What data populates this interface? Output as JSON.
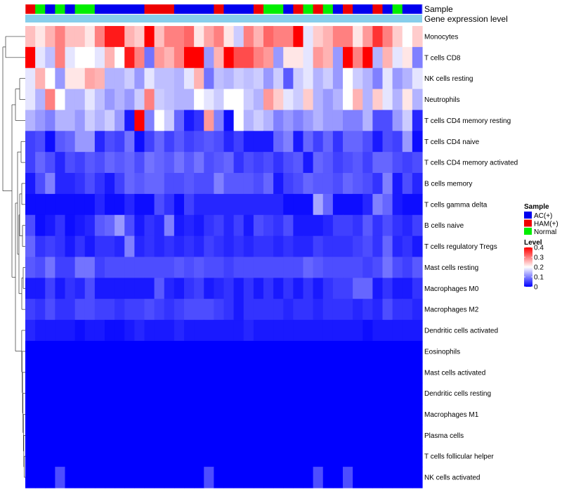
{
  "chart_data": {
    "type": "heatmap",
    "annotation_tracks": [
      {
        "name": "Sample"
      },
      {
        "name": "Gene expression level"
      }
    ],
    "sample_groups": [
      "HAM(+)",
      "Normal",
      "AC(+)",
      "Normal",
      "AC(+)",
      "Normal",
      "Normal",
      "AC(+)",
      "AC(+)",
      "AC(+)",
      "AC(+)",
      "AC(+)",
      "HAM(+)",
      "HAM(+)",
      "HAM(+)",
      "AC(+)",
      "AC(+)",
      "AC(+)",
      "AC(+)",
      "HAM(+)",
      "AC(+)",
      "AC(+)",
      "AC(+)",
      "HAM(+)",
      "Normal",
      "Normal",
      "AC(+)",
      "HAM(+)",
      "Normal",
      "HAM(+)",
      "Normal",
      "AC(+)",
      "HAM(+)",
      "AC(+)",
      "AC(+)",
      "HAM(+)",
      "AC(+)",
      "Normal",
      "AC(+)",
      "AC(+)"
    ],
    "group_colors": {
      "AC(+)": "#0000ee",
      "HAM(+)": "#ee0000",
      "Normal": "#00ee00"
    },
    "expression_level_color": "#87ceeb",
    "rows": [
      "Monocytes",
      "T cells CD8",
      "NK cells resting",
      "Neutrophils",
      "T cells CD4 memory resting",
      "T cells CD4 naive",
      "T cells CD4 memory activated",
      "B cells memory",
      "T cells gamma delta",
      "B cells naive",
      "T cells regulatory  Tregs",
      "Mast cells resting",
      "Macrophages M0",
      "Macrophages M2",
      "Dendritic cells activated",
      "Eosinophils",
      "Mast cells activated",
      "Dendritic cells resting",
      "Macrophages M1",
      "Plasma cells",
      "T cells follicular helper",
      "NK cells activated"
    ],
    "values": [
      [
        0.25,
        0.22,
        0.26,
        0.3,
        0.25,
        0.25,
        0.22,
        0.3,
        0.38,
        0.38,
        0.26,
        0.24,
        0.4,
        0.25,
        0.3,
        0.3,
        0.32,
        0.22,
        0.27,
        0.3,
        0.22,
        0.16,
        0.3,
        0.26,
        0.32,
        0.3,
        0.3,
        0.4,
        0.18,
        0.24,
        0.26,
        0.3,
        0.3,
        0.22,
        0.28,
        0.36,
        0.3,
        0.24,
        0.2,
        0.24
      ],
      [
        0.4,
        0.18,
        0.15,
        0.3,
        0.18,
        0.2,
        0.2,
        0.18,
        0.26,
        0.2,
        0.38,
        0.3,
        0.09,
        0.28,
        0.26,
        0.3,
        0.4,
        0.4,
        0.12,
        0.26,
        0.4,
        0.34,
        0.34,
        0.3,
        0.28,
        0.12,
        0.22,
        0.22,
        0.18,
        0.28,
        0.26,
        0.12,
        0.4,
        0.3,
        0.4,
        0.14,
        0.26,
        0.18,
        0.22,
        0.1
      ],
      [
        0.18,
        0.26,
        0.2,
        0.12,
        0.22,
        0.22,
        0.27,
        0.26,
        0.14,
        0.14,
        0.16,
        0.12,
        0.18,
        0.15,
        0.15,
        0.14,
        0.18,
        0.26,
        0.09,
        0.15,
        0.14,
        0.16,
        0.15,
        0.16,
        0.12,
        0.16,
        0.07,
        0.16,
        0.18,
        0.14,
        0.16,
        0.12,
        0.2,
        0.16,
        0.14,
        0.1,
        0.18,
        0.12,
        0.14,
        0.18
      ],
      [
        0.18,
        0.14,
        0.3,
        0.2,
        0.14,
        0.14,
        0.18,
        0.15,
        0.12,
        0.14,
        0.12,
        0.16,
        0.3,
        0.16,
        0.15,
        0.14,
        0.14,
        0.2,
        0.18,
        0.16,
        0.2,
        0.2,
        0.16,
        0.14,
        0.28,
        0.24,
        0.18,
        0.16,
        0.24,
        0.14,
        0.12,
        0.14,
        0.2,
        0.26,
        0.14,
        0.24,
        0.18,
        0.14,
        0.22,
        0.14
      ],
      [
        0.14,
        0.12,
        0.1,
        0.14,
        0.14,
        0.12,
        0.16,
        0.14,
        0.16,
        0.12,
        0.02,
        0.4,
        0.1,
        0.2,
        0.16,
        0.08,
        0.02,
        0.04,
        0.28,
        0.1,
        0.01,
        0.2,
        0.14,
        0.16,
        0.14,
        0.1,
        0.12,
        0.1,
        0.12,
        0.14,
        0.12,
        0.12,
        0.1,
        0.1,
        0.14,
        0.06,
        0.06,
        0.12,
        0.16,
        0.03
      ],
      [
        0.05,
        0.06,
        0.01,
        0.07,
        0.08,
        0.12,
        0.12,
        0.03,
        0.06,
        0.05,
        0.09,
        0.01,
        0.05,
        0.08,
        0.05,
        0.07,
        0.05,
        0.06,
        0.07,
        0.06,
        0.03,
        0.05,
        0.02,
        0.02,
        0.02,
        0.08,
        0.1,
        0.02,
        0.08,
        0.05,
        0.08,
        0.04,
        0.08,
        0.08,
        0.06,
        0.02,
        0.06,
        0.05,
        0.12,
        0.01
      ],
      [
        0.05,
        0.08,
        0.06,
        0.03,
        0.06,
        0.05,
        0.07,
        0.06,
        0.08,
        0.07,
        0.08,
        0.06,
        0.09,
        0.08,
        0.07,
        0.09,
        0.07,
        0.09,
        0.06,
        0.07,
        0.08,
        0.04,
        0.06,
        0.05,
        0.06,
        0.04,
        0.06,
        0.07,
        0.02,
        0.08,
        0.07,
        0.05,
        0.06,
        0.07,
        0.05,
        0.08,
        0.08,
        0.06,
        0.05,
        0.06
      ],
      [
        0.02,
        0.06,
        0.1,
        0.03,
        0.03,
        0.04,
        0.06,
        0.04,
        0.02,
        0.05,
        0.08,
        0.07,
        0.08,
        0.08,
        0.06,
        0.06,
        0.07,
        0.06,
        0.06,
        0.1,
        0.07,
        0.07,
        0.07,
        0.06,
        0.08,
        0.02,
        0.05,
        0.06,
        0.08,
        0.07,
        0.07,
        0.06,
        0.08,
        0.07,
        0.06,
        0.04,
        0.1,
        0.02,
        0.06,
        0.03
      ],
      [
        0.01,
        0.01,
        0.01,
        0.01,
        0.01,
        0.01,
        0.01,
        0.03,
        0.01,
        0.01,
        0.03,
        0.01,
        0.01,
        0.06,
        0.04,
        0.01,
        0.05,
        0.03,
        0.03,
        0.03,
        0.03,
        0.03,
        0.03,
        0.03,
        0.03,
        0.03,
        0.01,
        0.01,
        0.01,
        0.13,
        0.08,
        0.01,
        0.01,
        0.01,
        0.03,
        0.1,
        0.08,
        0.02,
        0.01,
        0.01
      ],
      [
        0.06,
        0.01,
        0.02,
        0.04,
        0.01,
        0.02,
        0.03,
        0.07,
        0.08,
        0.12,
        0.06,
        0.02,
        0.04,
        0.03,
        0.1,
        0.02,
        0.03,
        0.02,
        0.04,
        0.05,
        0.03,
        0.05,
        0.02,
        0.06,
        0.05,
        0.04,
        0.06,
        0.02,
        0.02,
        0.02,
        0.03,
        0.05,
        0.05,
        0.04,
        0.07,
        0.04,
        0.06,
        0.04,
        0.03,
        0.05
      ],
      [
        0.08,
        0.04,
        0.05,
        0.04,
        0.02,
        0.04,
        0.02,
        0.04,
        0.04,
        0.03,
        0.1,
        0.03,
        0.04,
        0.03,
        0.04,
        0.03,
        0.04,
        0.03,
        0.05,
        0.04,
        0.03,
        0.04,
        0.03,
        0.04,
        0.04,
        0.03,
        0.04,
        0.03,
        0.03,
        0.05,
        0.04,
        0.04,
        0.04,
        0.05,
        0.06,
        0.04,
        0.08,
        0.03,
        0.04,
        0.02
      ],
      [
        0.07,
        0.06,
        0.09,
        0.05,
        0.05,
        0.09,
        0.09,
        0.05,
        0.06,
        0.06,
        0.06,
        0.06,
        0.06,
        0.06,
        0.06,
        0.07,
        0.06,
        0.07,
        0.06,
        0.06,
        0.05,
        0.06,
        0.06,
        0.06,
        0.06,
        0.06,
        0.06,
        0.06,
        0.08,
        0.07,
        0.06,
        0.06,
        0.06,
        0.06,
        0.05,
        0.06,
        0.09,
        0.06,
        0.05,
        0.07
      ],
      [
        0.02,
        0.02,
        0.05,
        0.02,
        0.04,
        0.03,
        0.06,
        0.02,
        0.02,
        0.02,
        0.02,
        0.02,
        0.02,
        0.07,
        0.03,
        0.02,
        0.04,
        0.05,
        0.02,
        0.03,
        0.04,
        0.02,
        0.04,
        0.02,
        0.04,
        0.02,
        0.04,
        0.02,
        0.04,
        0.02,
        0.04,
        0.05,
        0.05,
        0.08,
        0.08,
        0.02,
        0.04,
        0.02,
        0.02,
        0.04
      ],
      [
        0.05,
        0.04,
        0.06,
        0.04,
        0.04,
        0.06,
        0.06,
        0.05,
        0.05,
        0.04,
        0.05,
        0.05,
        0.06,
        0.05,
        0.04,
        0.05,
        0.06,
        0.06,
        0.06,
        0.05,
        0.04,
        0.02,
        0.04,
        0.04,
        0.04,
        0.04,
        0.03,
        0.04,
        0.04,
        0.03,
        0.04,
        0.04,
        0.04,
        0.03,
        0.04,
        0.03,
        0.06,
        0.04,
        0.04,
        0.03
      ],
      [
        0.03,
        0.02,
        0.02,
        0.02,
        0.02,
        0.01,
        0.02,
        0.02,
        0.01,
        0.01,
        0.02,
        0.03,
        0.02,
        0.02,
        0.02,
        0.03,
        0.02,
        0.02,
        0.02,
        0.02,
        0.02,
        0.02,
        0.03,
        0.02,
        0.02,
        0.02,
        0.02,
        0.02,
        0.02,
        0.02,
        0.02,
        0.02,
        0.02,
        0.02,
        0.01,
        0.02,
        0.02,
        0.02,
        0.02,
        0.02
      ],
      [
        0.0,
        0.0,
        0.0,
        0.0,
        0.0,
        0.0,
        0.0,
        0.0,
        0.0,
        0.0,
        0.0,
        0.0,
        0.0,
        0.0,
        0.0,
        0.0,
        0.0,
        0.0,
        0.0,
        0.0,
        0.0,
        0.0,
        0.0,
        0.0,
        0.0,
        0.0,
        0.0,
        0.0,
        0.0,
        0.0,
        0.0,
        0.0,
        0.0,
        0.0,
        0.0,
        0.0,
        0.0,
        0.0,
        0.0,
        0.0
      ],
      [
        0.0,
        0.0,
        0.0,
        0.0,
        0.0,
        0.0,
        0.0,
        0.0,
        0.0,
        0.0,
        0.0,
        0.0,
        0.0,
        0.0,
        0.0,
        0.0,
        0.0,
        0.0,
        0.0,
        0.0,
        0.0,
        0.0,
        0.0,
        0.0,
        0.0,
        0.0,
        0.0,
        0.0,
        0.0,
        0.0,
        0.0,
        0.0,
        0.0,
        0.0,
        0.0,
        0.0,
        0.0,
        0.0,
        0.0,
        0.0
      ],
      [
        0.0,
        0.0,
        0.0,
        0.0,
        0.0,
        0.0,
        0.0,
        0.0,
        0.0,
        0.0,
        0.0,
        0.0,
        0.0,
        0.0,
        0.0,
        0.0,
        0.0,
        0.0,
        0.0,
        0.0,
        0.0,
        0.0,
        0.0,
        0.0,
        0.0,
        0.0,
        0.0,
        0.0,
        0.0,
        0.0,
        0.0,
        0.0,
        0.0,
        0.0,
        0.0,
        0.0,
        0.0,
        0.0,
        0.0,
        0.0
      ],
      [
        0.0,
        0.0,
        0.0,
        0.0,
        0.0,
        0.0,
        0.0,
        0.0,
        0.0,
        0.0,
        0.0,
        0.0,
        0.0,
        0.0,
        0.0,
        0.0,
        0.0,
        0.0,
        0.0,
        0.0,
        0.0,
        0.0,
        0.0,
        0.0,
        0.0,
        0.0,
        0.0,
        0.0,
        0.0,
        0.0,
        0.0,
        0.0,
        0.0,
        0.0,
        0.0,
        0.0,
        0.0,
        0.0,
        0.0,
        0.0
      ],
      [
        0.0,
        0.0,
        0.0,
        0.0,
        0.0,
        0.0,
        0.0,
        0.0,
        0.0,
        0.0,
        0.0,
        0.0,
        0.0,
        0.0,
        0.0,
        0.0,
        0.0,
        0.0,
        0.0,
        0.0,
        0.0,
        0.0,
        0.0,
        0.0,
        0.0,
        0.0,
        0.0,
        0.0,
        0.0,
        0.0,
        0.0,
        0.0,
        0.0,
        0.0,
        0.0,
        0.0,
        0.0,
        0.0,
        0.0,
        0.0
      ],
      [
        0.0,
        0.0,
        0.0,
        0.0,
        0.0,
        0.0,
        0.0,
        0.0,
        0.0,
        0.0,
        0.0,
        0.0,
        0.0,
        0.0,
        0.0,
        0.0,
        0.0,
        0.0,
        0.0,
        0.0,
        0.0,
        0.0,
        0.0,
        0.0,
        0.0,
        0.0,
        0.0,
        0.0,
        0.0,
        0.0,
        0.0,
        0.0,
        0.0,
        0.0,
        0.0,
        0.0,
        0.0,
        0.0,
        0.0,
        0.0
      ],
      [
        0.0,
        0.0,
        0.0,
        0.06,
        0.0,
        0.0,
        0.0,
        0.0,
        0.0,
        0.0,
        0.0,
        0.0,
        0.0,
        0.0,
        0.0,
        0.0,
        0.0,
        0.0,
        0.06,
        0.0,
        0.0,
        0.0,
        0.0,
        0.0,
        0.0,
        0.0,
        0.0,
        0.0,
        0.0,
        0.06,
        0.0,
        0.0,
        0.06,
        0.0,
        0.0,
        0.0,
        0.0,
        0.0,
        0.0,
        0.0
      ]
    ],
    "color_scale": {
      "min": 0,
      "mid": 0.2,
      "max": 0.4,
      "low": "#0000ff",
      "midcolor": "#ffffff",
      "high": "#ff0000"
    },
    "legend": {
      "sample_title": "Sample",
      "sample_items": [
        "AC(+)",
        "HAM(+)",
        "Normal"
      ],
      "level_title": "Level",
      "level_ticks": [
        "0.4",
        "0.3",
        "0.2",
        "0.1",
        "0"
      ]
    },
    "title": "",
    "xlabel": "",
    "ylabel": ""
  }
}
